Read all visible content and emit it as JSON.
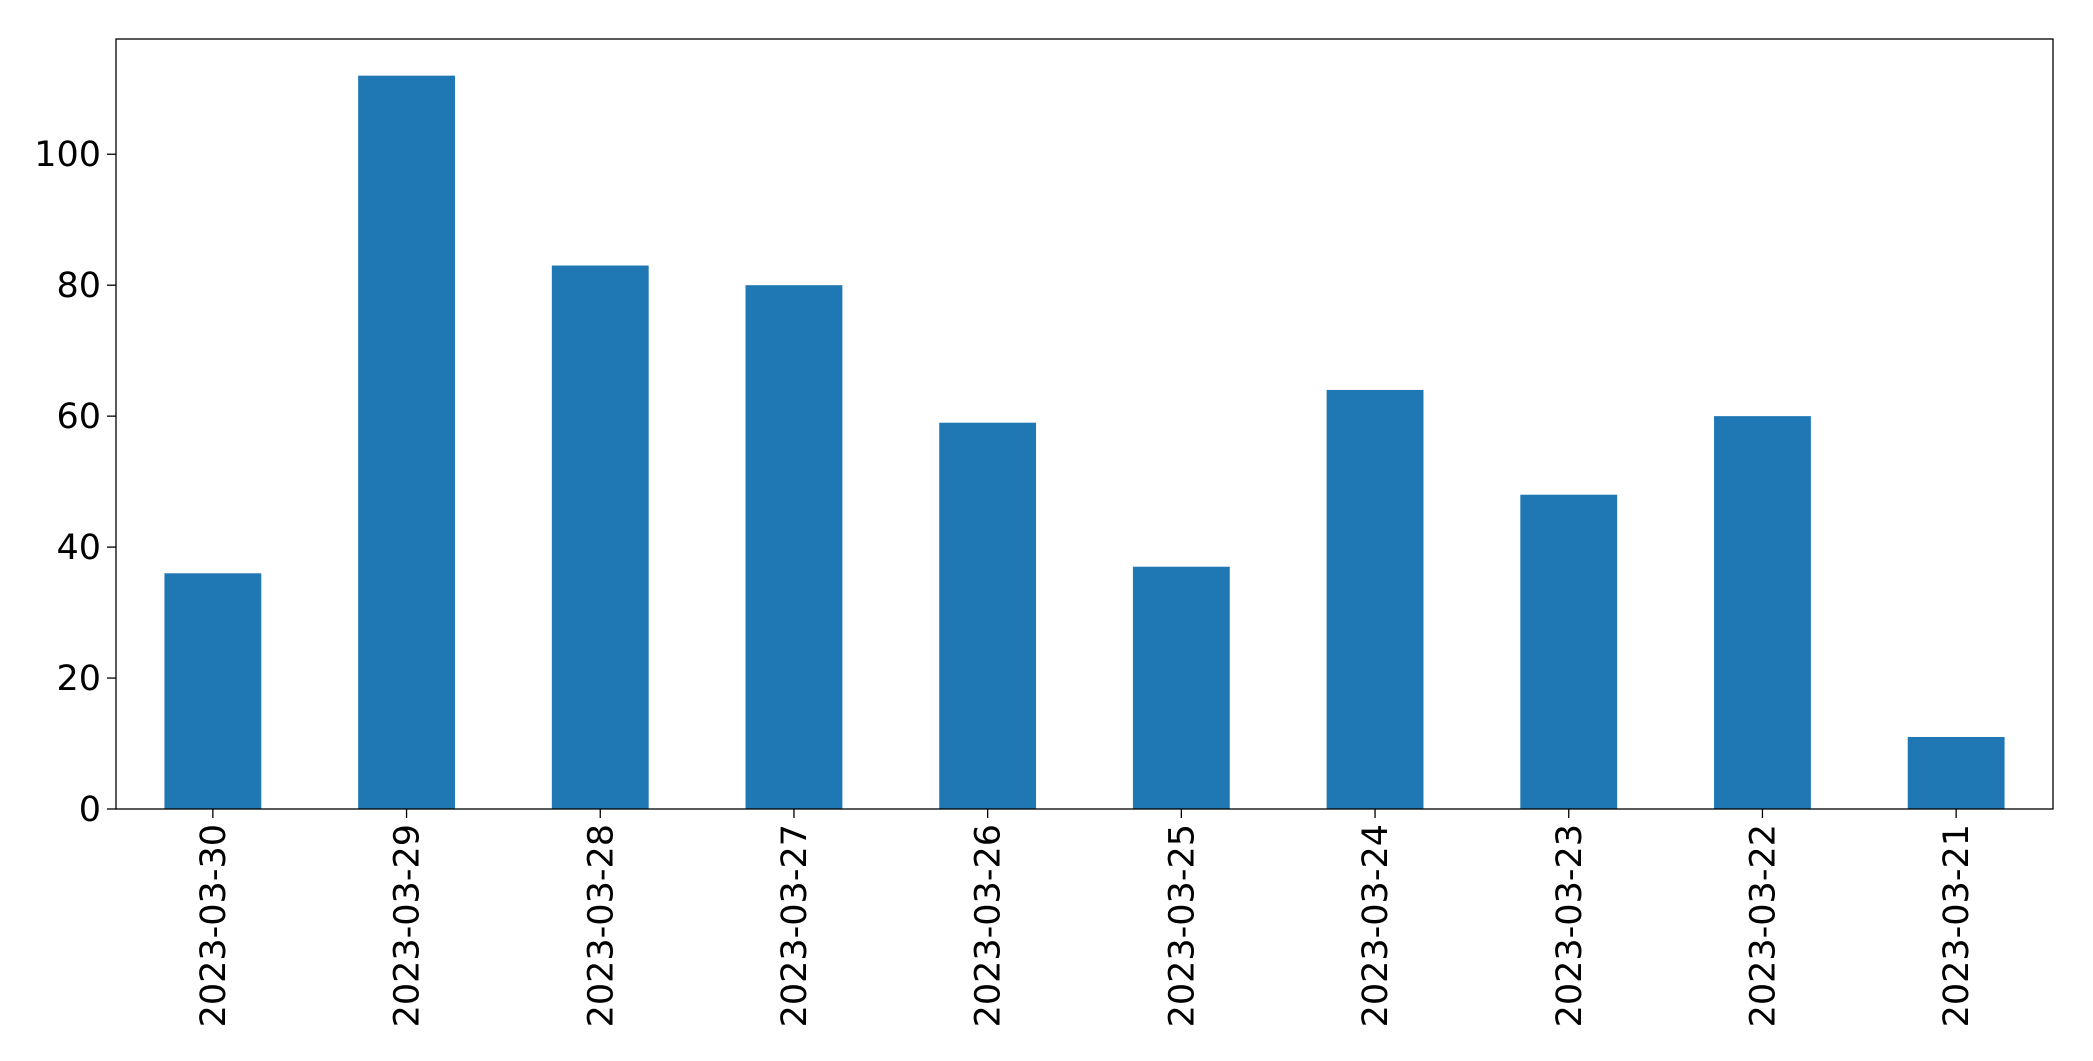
{
  "chart_data": {
    "type": "bar",
    "categories": [
      "2023-03-30",
      "2023-03-29",
      "2023-03-28",
      "2023-03-27",
      "2023-03-26",
      "2023-03-25",
      "2023-03-24",
      "2023-03-23",
      "2023-03-22",
      "2023-03-21"
    ],
    "values": [
      36,
      112,
      83,
      80,
      59,
      37,
      64,
      48,
      60,
      11
    ],
    "color": "#1f77b4",
    "ylim": [
      0,
      117.6
    ],
    "yticks": [
      0,
      20,
      40,
      60,
      80,
      100
    ],
    "grid": false
  }
}
